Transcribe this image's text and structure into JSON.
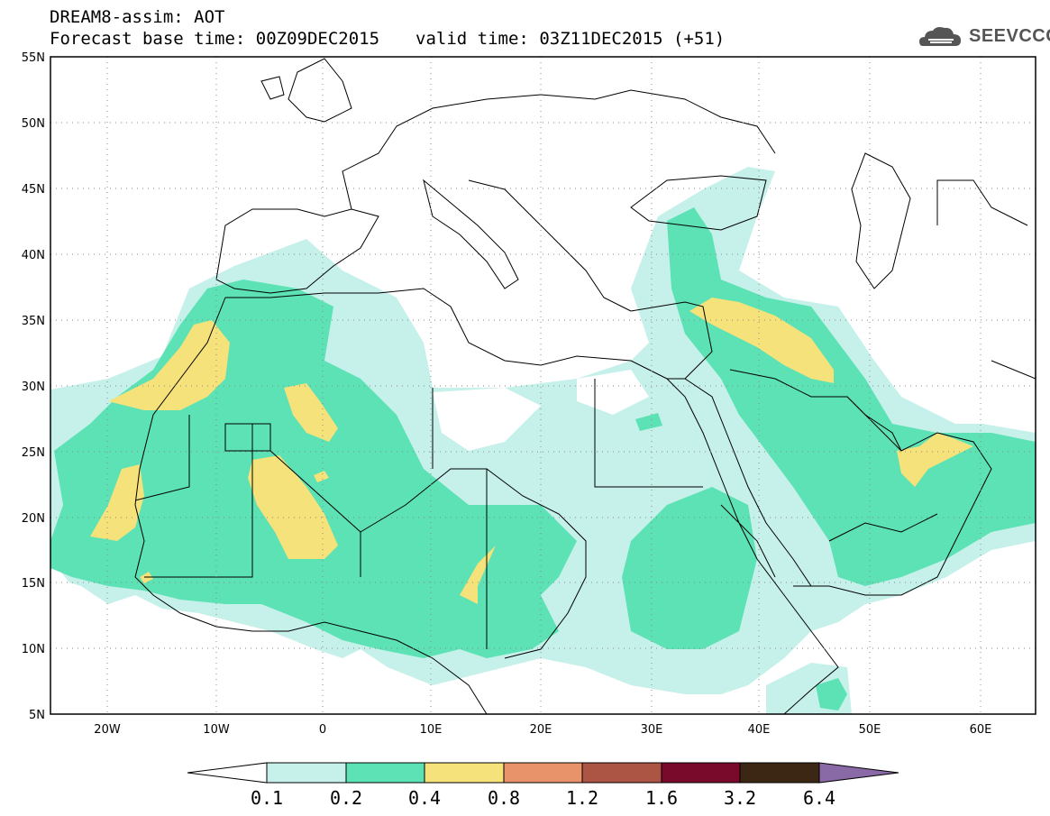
{
  "header": {
    "title": "DREAM8-assim: AOT",
    "base_time": "Forecast base time: 00Z09DEC2015",
    "valid_time": "valid time: 03Z11DEC2015 (+51)",
    "logo_text": "SEEVCCC"
  },
  "map": {
    "lon_range": [
      -25,
      65
    ],
    "lat_range": [
      5,
      55
    ],
    "lat_labels": [
      "5N",
      "10N",
      "15N",
      "20N",
      "25N",
      "30N",
      "35N",
      "40N",
      "45N",
      "50N",
      "55N"
    ],
    "lon_labels": [
      "20W",
      "10W",
      "0",
      "10E",
      "20E",
      "30E",
      "40E",
      "50E",
      "60E"
    ],
    "grid": "dotted"
  },
  "colorbar": {
    "labels": [
      "0.1",
      "0.2",
      "0.4",
      "0.8",
      "1.2",
      "1.6",
      "3.2",
      "6.4"
    ],
    "colors": [
      "#c6f0ea",
      "#5ce2b4",
      "#f5e27a",
      "#e8936a",
      "#ad5544",
      "#7a0a2b",
      "#3c2614",
      "#8a6aa6"
    ],
    "under_color": "#ffffff"
  }
}
